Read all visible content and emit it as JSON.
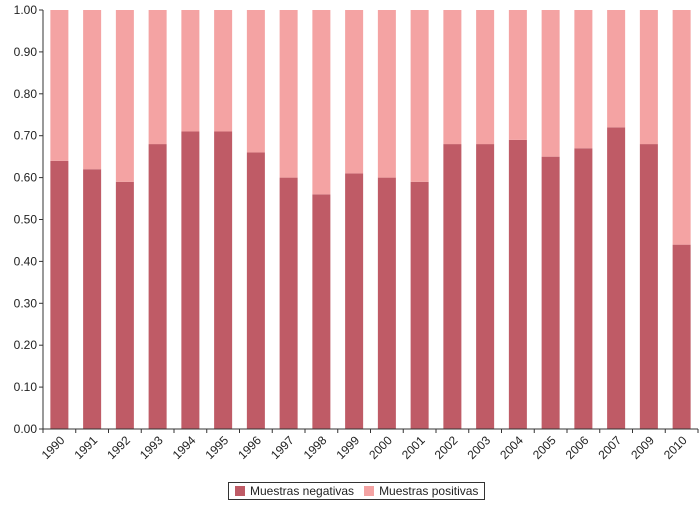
{
  "chart_data": {
    "type": "bar",
    "stacked": true,
    "categories": [
      "1990",
      "1991",
      "1992",
      "1993",
      "1994",
      "1995",
      "1996",
      "1997",
      "1998",
      "1999",
      "2000",
      "2001",
      "2002",
      "2003",
      "2004",
      "2005",
      "2006",
      "2007",
      "2009",
      "2010"
    ],
    "series": [
      {
        "name": "Muestras negativas",
        "color": "#bf5b66",
        "values": [
          0.64,
          0.62,
          0.59,
          0.68,
          0.71,
          0.71,
          0.66,
          0.6,
          0.56,
          0.61,
          0.6,
          0.59,
          0.68,
          0.68,
          0.69,
          0.65,
          0.67,
          0.72,
          0.68,
          0.44
        ]
      },
      {
        "name": "Muestras positivas",
        "color": "#f4a3a3",
        "values": [
          0.36,
          0.38,
          0.41,
          0.32,
          0.29,
          0.29,
          0.34,
          0.4,
          0.44,
          0.39,
          0.4,
          0.41,
          0.32,
          0.32,
          0.31,
          0.35,
          0.33,
          0.28,
          0.32,
          0.56
        ]
      }
    ],
    "ylim": [
      0,
      1
    ],
    "yticks": [
      "0.00",
      "0.10",
      "0.20",
      "0.30",
      "0.40",
      "0.50",
      "0.60",
      "0.70",
      "0.80",
      "0.90",
      "1.00"
    ],
    "grid": false,
    "legend_position": "bottom-center",
    "title": "",
    "xlabel": "",
    "ylabel": ""
  }
}
